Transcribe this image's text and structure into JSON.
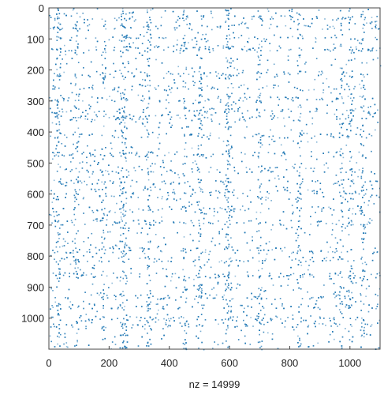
{
  "chart_data": {
    "type": "scatter",
    "subtype": "sparsity-pattern",
    "title": "",
    "xlabel": "nz = 14999",
    "ylabel": "",
    "nz": 14999,
    "xlim": [
      0,
      1100
    ],
    "ylim": [
      0,
      1100
    ],
    "y_reversed": true,
    "x_ticks": [
      0,
      200,
      400,
      600,
      800,
      1000
    ],
    "y_ticks": [
      0,
      100,
      200,
      300,
      400,
      500,
      600,
      700,
      800,
      900,
      1000
    ],
    "marker_color": "#1f77b4",
    "dense_rows": [
      30,
      60,
      100,
      130,
      210,
      255,
      290,
      330,
      350,
      410,
      470,
      520,
      560,
      590,
      610,
      650,
      690,
      780,
      810,
      860,
      930,
      960,
      1000,
      1020
    ],
    "dense_cols": [
      30,
      90,
      180,
      240,
      250,
      330,
      450,
      500,
      590,
      600,
      700,
      830,
      970,
      1000,
      1040
    ],
    "grid": false
  }
}
